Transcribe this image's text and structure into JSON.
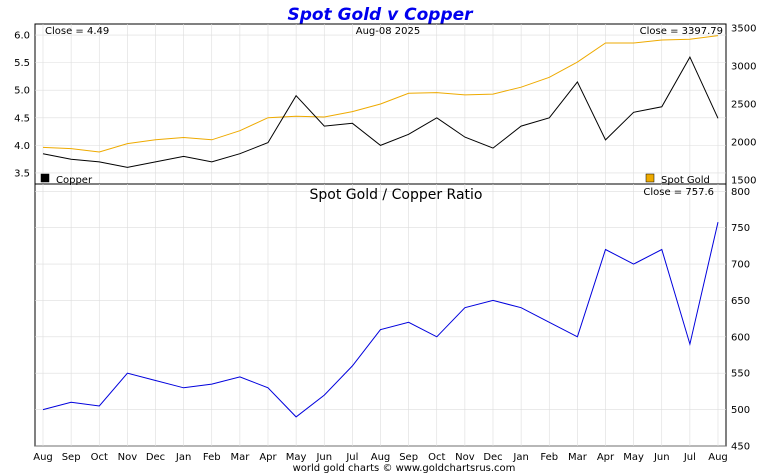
{
  "title": "Spot Gold v Copper",
  "footer": "world gold charts © www.goldchartsrus.com",
  "colors": {
    "title": "#0000ee",
    "copper": "#000000",
    "gold": "#eeaa00",
    "ratio": "#0000dd",
    "grid": "#dddddd"
  },
  "top_panel": {
    "date_label": "Aug-08  2025",
    "left_close": "Close = 4.49",
    "right_close": "Close = 3397.79",
    "legend_left": "Copper",
    "legend_right": "Spot Gold",
    "left_ticks": [
      "6.0",
      "5.5",
      "5.0",
      "4.5",
      "4.0",
      "3.5"
    ],
    "right_ticks": [
      "3500",
      "3000",
      "2500",
      "2000",
      "1500"
    ]
  },
  "bottom_panel": {
    "title": "Spot Gold  /  Copper Ratio",
    "close": "Close = 757.6",
    "right_ticks": [
      "800",
      "750",
      "700",
      "650",
      "600",
      "550",
      "500",
      "450"
    ]
  },
  "x_labels": [
    "Aug",
    "Sep",
    "Oct",
    "Nov",
    "Dec",
    "Jan",
    "Feb",
    "Mar",
    "Apr",
    "May",
    "Jun",
    "Jul",
    "Aug",
    "Sep",
    "Oct",
    "Nov",
    "Dec",
    "Jan",
    "Feb",
    "Mar",
    "Apr",
    "May",
    "Jun",
    "Jul",
    "Aug"
  ],
  "chart_data": [
    {
      "type": "line",
      "title": "Spot Gold v Copper",
      "x": [
        "Aug",
        "Sep",
        "Oct",
        "Nov",
        "Dec",
        "Jan",
        "Feb",
        "Mar",
        "Apr",
        "May",
        "Jun",
        "Jul",
        "Aug",
        "Sep",
        "Oct",
        "Nov",
        "Dec",
        "Jan",
        "Feb",
        "Mar",
        "Apr",
        "May",
        "Jun",
        "Jul",
        "Aug"
      ],
      "series": [
        {
          "name": "Copper",
          "axis": "left",
          "ylim": [
            3.3,
            6.2
          ],
          "values": [
            3.85,
            3.75,
            3.7,
            3.6,
            3.7,
            3.8,
            3.7,
            3.85,
            4.05,
            4.9,
            4.35,
            4.4,
            4.0,
            4.2,
            4.5,
            4.15,
            3.95,
            4.35,
            4.5,
            5.15,
            4.1,
            4.6,
            4.7,
            5.6,
            4.49
          ]
        },
        {
          "name": "Spot Gold",
          "axis": "right",
          "ylim": [
            1450,
            3550
          ],
          "values": [
            1930,
            1915,
            1870,
            1980,
            2030,
            2060,
            2030,
            2150,
            2320,
            2340,
            2330,
            2400,
            2500,
            2640,
            2650,
            2620,
            2630,
            2720,
            2850,
            3050,
            3300,
            3300,
            3340,
            3350,
            3397.79
          ]
        }
      ]
    },
    {
      "type": "line",
      "title": "Spot Gold  /  Copper Ratio",
      "x": [
        "Aug",
        "Sep",
        "Oct",
        "Nov",
        "Dec",
        "Jan",
        "Feb",
        "Mar",
        "Apr",
        "May",
        "Jun",
        "Jul",
        "Aug",
        "Sep",
        "Oct",
        "Nov",
        "Dec",
        "Jan",
        "Feb",
        "Mar",
        "Apr",
        "May",
        "Jun",
        "Jul",
        "Aug"
      ],
      "ylim": [
        450,
        810
      ],
      "values": [
        500,
        510,
        505,
        550,
        540,
        530,
        535,
        545,
        530,
        490,
        520,
        560,
        610,
        620,
        600,
        640,
        650,
        640,
        620,
        600,
        720,
        700,
        720,
        590,
        757.6
      ]
    }
  ]
}
